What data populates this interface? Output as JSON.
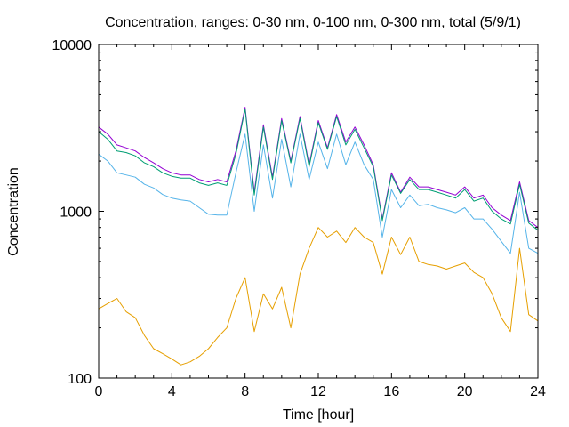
{
  "chart_data": {
    "type": "line",
    "title": "Concentration, ranges: 0-30 nm, 0-100 nm, 0-300 nm, total (5/9/1)",
    "xlabel": "Time [hour]",
    "ylabel": "Concentration",
    "xlim": [
      0,
      24
    ],
    "ylim": [
      100,
      10000
    ],
    "yscale": "log",
    "grid": false,
    "legend": "none",
    "x_ticks": [
      "0",
      "4",
      "8",
      "12",
      "16",
      "20",
      "24"
    ],
    "y_ticks": [
      "100",
      "1000",
      "10000"
    ],
    "x": [
      0.0,
      0.5,
      1.0,
      1.5,
      2.0,
      2.5,
      3.0,
      3.5,
      4.0,
      4.5,
      5.0,
      5.5,
      6.0,
      6.5,
      7.0,
      7.5,
      8.0,
      8.5,
      9.0,
      9.5,
      10.0,
      10.5,
      11.0,
      11.5,
      12.0,
      12.5,
      13.0,
      13.5,
      14.0,
      14.5,
      15.0,
      15.5,
      16.0,
      16.5,
      17.0,
      17.5,
      18.0,
      18.5,
      19.0,
      19.5,
      20.0,
      20.5,
      21.0,
      21.5,
      22.0,
      22.5,
      23.0,
      23.5,
      24.0
    ],
    "series": [
      {
        "color": "#9400d3",
        "values": [
          3200,
          2900,
          2500,
          2400,
          2300,
          2100,
          1950,
          1800,
          1700,
          1650,
          1650,
          1550,
          1500,
          1550,
          1500,
          2300,
          4200,
          1300,
          3300,
          1600,
          3600,
          2000,
          3700,
          1900,
          3500,
          2400,
          3800,
          2600,
          3200,
          2500,
          1900,
          900,
          1700,
          1300,
          1600,
          1400,
          1400,
          1350,
          1300,
          1250,
          1400,
          1200,
          1250,
          1050,
          950,
          880,
          1500,
          880,
          800
        ]
      },
      {
        "color": "#009e73",
        "values": [
          3000,
          2700,
          2300,
          2250,
          2150,
          1950,
          1850,
          1700,
          1620,
          1580,
          1580,
          1480,
          1430,
          1480,
          1430,
          2200,
          4100,
          1250,
          3200,
          1550,
          3500,
          1950,
          3600,
          1850,
          3400,
          2350,
          3700,
          2500,
          3100,
          2400,
          1850,
          880,
          1650,
          1280,
          1550,
          1350,
          1350,
          1300,
          1250,
          1200,
          1350,
          1150,
          1200,
          1000,
          900,
          840,
          1450,
          850,
          770
        ]
      },
      {
        "color": "#56b4e9",
        "values": [
          2200,
          2000,
          1700,
          1650,
          1600,
          1450,
          1380,
          1260,
          1200,
          1170,
          1150,
          1050,
          960,
          950,
          950,
          1700,
          2900,
          1000,
          2500,
          1200,
          2700,
          1400,
          2900,
          1550,
          2600,
          1800,
          2900,
          1900,
          2600,
          1900,
          1550,
          700,
          1350,
          1050,
          1250,
          1080,
          1100,
          1050,
          1020,
          980,
          1050,
          900,
          900,
          780,
          660,
          560,
          1300,
          600,
          560
        ]
      },
      {
        "color": "#e69f00",
        "values": [
          260,
          280,
          300,
          250,
          230,
          180,
          150,
          140,
          130,
          120,
          125,
          135,
          150,
          175,
          200,
          300,
          400,
          190,
          320,
          260,
          350,
          200,
          420,
          600,
          800,
          700,
          760,
          650,
          800,
          700,
          650,
          420,
          700,
          550,
          700,
          500,
          480,
          470,
          450,
          470,
          490,
          430,
          400,
          320,
          230,
          190,
          600,
          240,
          220
        ]
      }
    ]
  }
}
